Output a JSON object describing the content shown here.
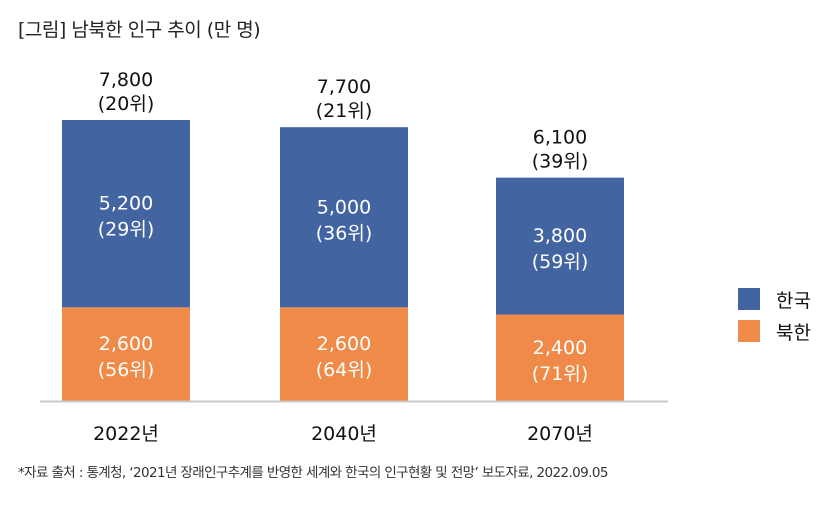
{
  "title": "[그림] 남북한 인구 추이 (만 명)",
  "footnote": "*자료 출처 : 통계청, ‘2021년 장래인구추계를 반영한 세계와 한국의 인구현황 및 전망’ 보도자료, 2022.09.05",
  "colors": {
    "south": "#4264a0",
    "north": "#ef8a48",
    "axis": "#c8c8c8"
  },
  "chart_data": {
    "type": "bar",
    "stacked": true,
    "title": "[그림] 남북한 인구 추이 (만 명)",
    "unit": "만 명",
    "categories": [
      "2022년",
      "2040년",
      "2070년"
    ],
    "series": [
      {
        "name": "북한",
        "values": [
          2600,
          2600,
          2400
        ],
        "labels": [
          "2,600",
          "2,600",
          "2,400"
        ],
        "ranks": [
          "(56위)",
          "(64위)",
          "(71위)"
        ]
      },
      {
        "name": "한국",
        "values": [
          5200,
          5000,
          3800
        ],
        "labels": [
          "5,200",
          "5,000",
          "3,800"
        ],
        "ranks": [
          "(29위)",
          "(36위)",
          "(59위)"
        ]
      }
    ],
    "totals": {
      "values": [
        7800,
        7700,
        6100
      ],
      "labels": [
        "7,800",
        "7,700",
        "6,100"
      ],
      "ranks": [
        "(20위)",
        "(21위)",
        "(39위)"
      ]
    },
    "ylim": [
      0,
      7800
    ],
    "legend": {
      "position": "right",
      "entries": [
        "한국",
        "북한"
      ]
    },
    "grid": false
  }
}
